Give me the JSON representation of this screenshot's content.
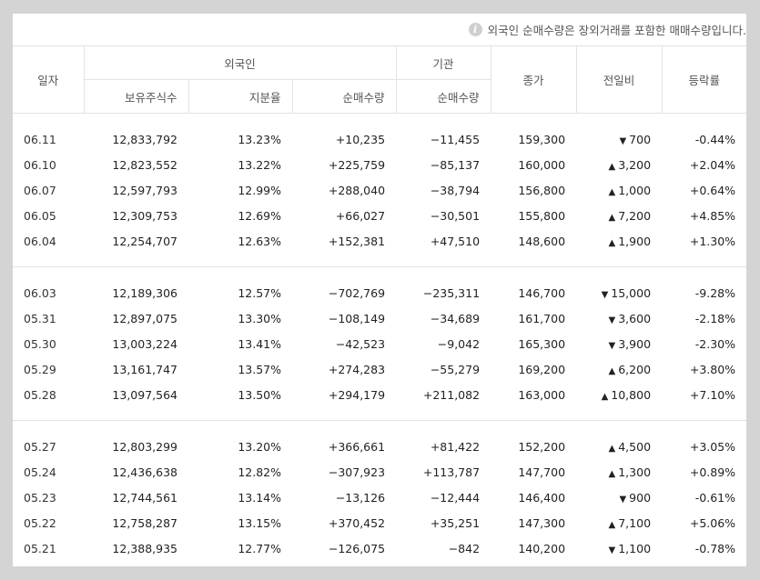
{
  "notice": {
    "icon": "info-icon",
    "text": "외국인 순매수량은 장외거래를 포함한 매매수량입니다."
  },
  "header": {
    "date": "일자",
    "foreign_group": "외국인",
    "institution_group": "기관",
    "close": "종가",
    "change": "전일비",
    "rate": "등락률",
    "holdings": "보유주식수",
    "share_ratio": "지분율",
    "foreign_net": "순매수량",
    "inst_net": "순매수량"
  },
  "colors": {
    "up": "#e02020",
    "down": "#1e4fc2"
  },
  "groups": [
    [
      {
        "date": "06.11",
        "holdings": "12,833,792",
        "ratio": "13.23%",
        "foreign": "+10,235",
        "inst": "−11,455",
        "close": "159,300",
        "dir": "down",
        "change": "700",
        "rate": "-0.44%"
      },
      {
        "date": "06.10",
        "holdings": "12,823,552",
        "ratio": "13.22%",
        "foreign": "+225,759",
        "inst": "−85,137",
        "close": "160,000",
        "dir": "up",
        "change": "3,200",
        "rate": "+2.04%"
      },
      {
        "date": "06.07",
        "holdings": "12,597,793",
        "ratio": "12.99%",
        "foreign": "+288,040",
        "inst": "−38,794",
        "close": "156,800",
        "dir": "up",
        "change": "1,000",
        "rate": "+0.64%"
      },
      {
        "date": "06.05",
        "holdings": "12,309,753",
        "ratio": "12.69%",
        "foreign": "+66,027",
        "inst": "−30,501",
        "close": "155,800",
        "dir": "up",
        "change": "7,200",
        "rate": "+4.85%"
      },
      {
        "date": "06.04",
        "holdings": "12,254,707",
        "ratio": "12.63%",
        "foreign": "+152,381",
        "inst": "+47,510",
        "close": "148,600",
        "dir": "up",
        "change": "1,900",
        "rate": "+1.30%"
      }
    ],
    [
      {
        "date": "06.03",
        "holdings": "12,189,306",
        "ratio": "12.57%",
        "foreign": "−702,769",
        "inst": "−235,311",
        "close": "146,700",
        "dir": "down",
        "change": "15,000",
        "rate": "-9.28%"
      },
      {
        "date": "05.31",
        "holdings": "12,897,075",
        "ratio": "13.30%",
        "foreign": "−108,149",
        "inst": "−34,689",
        "close": "161,700",
        "dir": "down",
        "change": "3,600",
        "rate": "-2.18%"
      },
      {
        "date": "05.30",
        "holdings": "13,003,224",
        "ratio": "13.41%",
        "foreign": "−42,523",
        "inst": "−9,042",
        "close": "165,300",
        "dir": "down",
        "change": "3,900",
        "rate": "-2.30%"
      },
      {
        "date": "05.29",
        "holdings": "13,161,747",
        "ratio": "13.57%",
        "foreign": "+274,283",
        "inst": "−55,279",
        "close": "169,200",
        "dir": "up",
        "change": "6,200",
        "rate": "+3.80%"
      },
      {
        "date": "05.28",
        "holdings": "13,097,564",
        "ratio": "13.50%",
        "foreign": "+294,179",
        "inst": "+211,082",
        "close": "163,000",
        "dir": "up",
        "change": "10,800",
        "rate": "+7.10%"
      }
    ],
    [
      {
        "date": "05.27",
        "holdings": "12,803,299",
        "ratio": "13.20%",
        "foreign": "+366,661",
        "inst": "+81,422",
        "close": "152,200",
        "dir": "up",
        "change": "4,500",
        "rate": "+3.05%"
      },
      {
        "date": "05.24",
        "holdings": "12,436,638",
        "ratio": "12.82%",
        "foreign": "−307,923",
        "inst": "+113,787",
        "close": "147,700",
        "dir": "up",
        "change": "1,300",
        "rate": "+0.89%"
      },
      {
        "date": "05.23",
        "holdings": "12,744,561",
        "ratio": "13.14%",
        "foreign": "−13,126",
        "inst": "−12,444",
        "close": "146,400",
        "dir": "down",
        "change": "900",
        "rate": "-0.61%"
      },
      {
        "date": "05.22",
        "holdings": "12,758,287",
        "ratio": "13.15%",
        "foreign": "+370,452",
        "inst": "+35,251",
        "close": "147,300",
        "dir": "up",
        "change": "7,100",
        "rate": "+5.06%"
      },
      {
        "date": "05.21",
        "holdings": "12,388,935",
        "ratio": "12.77%",
        "foreign": "−126,075",
        "inst": "−842",
        "close": "140,200",
        "dir": "down",
        "change": "1,100",
        "rate": "-0.78%"
      }
    ]
  ]
}
